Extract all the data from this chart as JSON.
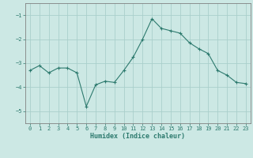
{
  "x": [
    0,
    1,
    2,
    3,
    4,
    5,
    6,
    7,
    8,
    9,
    10,
    11,
    12,
    13,
    14,
    15,
    16,
    17,
    18,
    19,
    20,
    21,
    22,
    23
  ],
  "y": [
    -3.3,
    -3.1,
    -3.4,
    -3.2,
    -3.2,
    -3.4,
    -4.8,
    -3.9,
    -3.75,
    -3.8,
    -3.3,
    -2.75,
    -2.0,
    -1.15,
    -1.55,
    -1.65,
    -1.75,
    -2.15,
    -2.4,
    -2.6,
    -3.3,
    -3.5,
    -3.8,
    -3.85
  ],
  "xlabel": "Humidex (Indice chaleur)",
  "ylabel": "",
  "ylim": [
    -5.5,
    -0.5
  ],
  "xlim": [
    -0.5,
    23.5
  ],
  "yticks": [
    -5,
    -4,
    -3,
    -2,
    -1
  ],
  "xticks": [
    0,
    1,
    2,
    3,
    4,
    5,
    6,
    7,
    8,
    9,
    10,
    11,
    12,
    13,
    14,
    15,
    16,
    17,
    18,
    19,
    20,
    21,
    22,
    23
  ],
  "line_color": "#2d7a6e",
  "marker": "+",
  "bg_color": "#cce8e4",
  "grid_color": "#aacfcb",
  "axis_color": "#808080",
  "font_color": "#2d7a6e",
  "font_family": "monospace",
  "tick_fontsize": 5.0,
  "xlabel_fontsize": 6.0
}
